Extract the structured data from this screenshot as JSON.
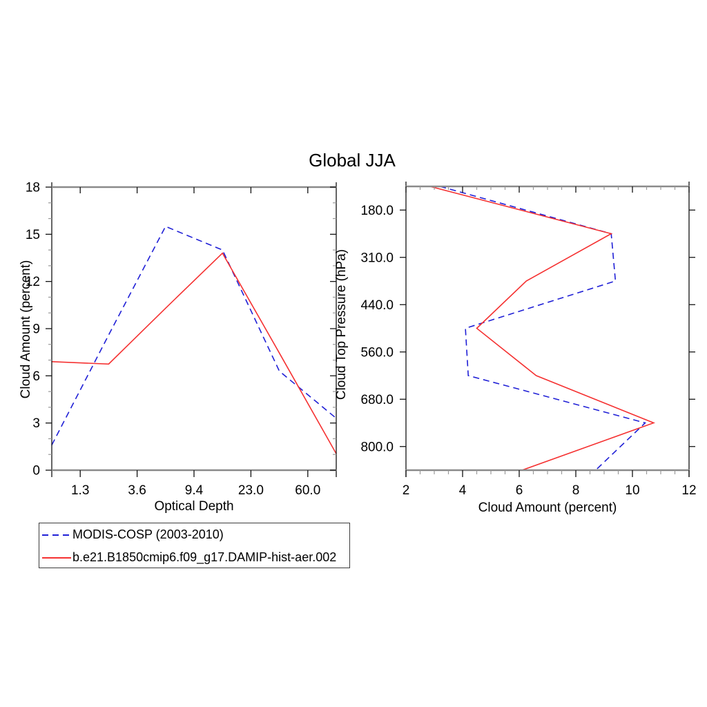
{
  "title": "Global JJA",
  "legend": {
    "entries": [
      {
        "label": "MODIS-COSP (2003-2010)",
        "color": "#1f1fd6",
        "style": "dashed"
      },
      {
        "label": "b.e21.B1850cmip6.f09_g17.DAMIP-hist-aer.002",
        "color": "#f53131",
        "style": "solid"
      }
    ]
  },
  "chart_data": [
    {
      "type": "line",
      "title": "Global JJA",
      "xlabel": "Optical Depth",
      "ylabel": "Cloud Amount (percent)",
      "x_tick_labels": [
        "1.3",
        "3.6",
        "9.4",
        "23.0",
        "60.0"
      ],
      "x_note": "6 optical-depth bins; points at bin centers, labeled ticks at the 5 interior bin boundaries",
      "y_tick_labels": [
        "0",
        "3",
        "6",
        "9",
        "12",
        "15",
        "18"
      ],
      "ylim": [
        0,
        18
      ],
      "y_major_step": 3,
      "y_minor_step": 1,
      "grid": false,
      "series": [
        {
          "name": "MODIS-COSP (2003-2010)",
          "values": [
            1.6,
            8.6,
            15.5,
            14.0,
            6.3,
            3.3
          ]
        },
        {
          "name": "b.e21.B1850cmip6.f09_g17.DAMIP-hist-aer.002",
          "values": [
            6.9,
            6.75,
            10.3,
            13.8,
            7.45,
            1.05
          ]
        }
      ]
    },
    {
      "type": "line",
      "title": "Global JJA",
      "xlabel": "Cloud Amount (percent)",
      "ylabel": "Cloud Top Pressure (hPa)",
      "orientation": "vertical-profile",
      "xlim": [
        2,
        12
      ],
      "x_major_step": 2,
      "x_minor_step": 0.5,
      "x_tick_labels": [
        "2",
        "4",
        "6",
        "8",
        "10",
        "12"
      ],
      "y_tick_labels": [
        "180.0",
        "310.0",
        "440.0",
        "560.0",
        "680.0",
        "800.0"
      ],
      "y_note": "7 cloud-top-pressure bins from top of atmosphere (top) to surface (bottom); points at bin centers, labeled ticks at the 6 interior bin boundaries",
      "grid": false,
      "series": [
        {
          "name": "MODIS-COSP (2003-2010)",
          "values": [
            3.2,
            9.25,
            9.4,
            4.1,
            4.2,
            10.45,
            8.7
          ]
        },
        {
          "name": "b.e21.B1850cmip6.f09_g17.DAMIP-hist-aer.002",
          "values": [
            2.85,
            9.25,
            6.25,
            4.5,
            6.6,
            10.75,
            6.1
          ]
        }
      ]
    }
  ]
}
